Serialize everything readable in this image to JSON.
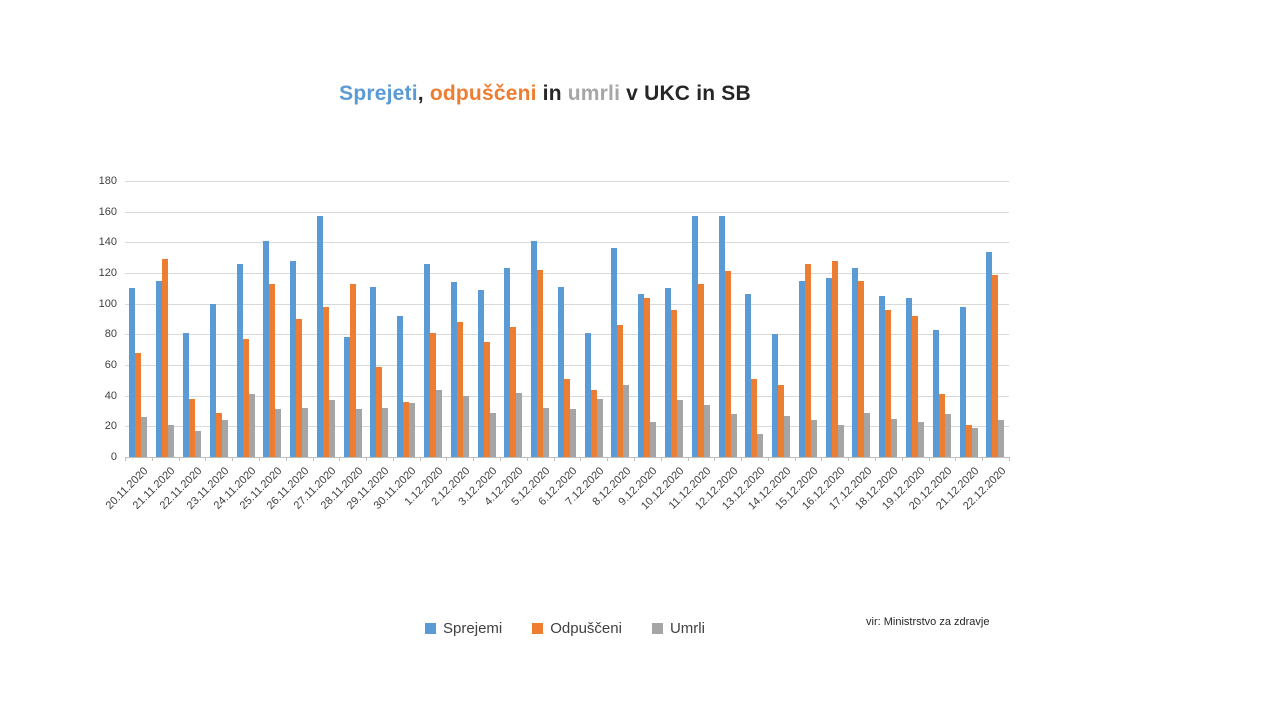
{
  "title": {
    "parts": [
      {
        "text": "Sprejeti",
        "color": "#5B9BD5"
      },
      {
        "text": ", ",
        "color": "#262626"
      },
      {
        "text": "odpuščeni",
        "color": "#ED7D31"
      },
      {
        "text": " in ",
        "color": "#262626"
      },
      {
        "text": "umrli",
        "color": "#A6A6A6"
      },
      {
        "text": " v UKC in SB",
        "color": "#262626"
      }
    ],
    "full_text": "Sprejeti, odpuščeni in umrli v UKC in SB"
  },
  "source_note": "vir: Ministrstvo za zdravje",
  "chart_data": {
    "type": "bar",
    "title": "Sprejeti, odpuščeni in umrli v UKC in SB",
    "xlabel": "",
    "ylabel": "",
    "ylim": [
      0,
      180
    ],
    "ytick_step": 20,
    "grid": true,
    "legend_position": "bottom",
    "categories": [
      "20.11.2020",
      "21.11.2020",
      "22.11.2020",
      "23.11.2020",
      "24.11.2020",
      "25.11.2020",
      "26.11.2020",
      "27.11.2020",
      "28.11.2020",
      "29.11.2020",
      "30.11.2020",
      "1.12.2020",
      "2.12.2020",
      "3.12.2020",
      "4.12.2020",
      "5.12.2020",
      "6.12.2020",
      "7.12.2020",
      "8.12.2020",
      "9.12.2020",
      "10.12.2020",
      "11.12.2020",
      "12.12.2020",
      "13.12.2020",
      "14.12.2020",
      "15.12.2020",
      "16.12.2020",
      "17.12.2020",
      "18.12.2020",
      "19.12.2020",
      "20.12.2020",
      "21.12.2020",
      "22.12.2020"
    ],
    "series": [
      {
        "name": "Sprejemi",
        "key": "sprejemi",
        "color": "#5B9BD5",
        "values": [
          110,
          115,
          81,
          100,
          126,
          141,
          128,
          157,
          78,
          111,
          92,
          126,
          114,
          109,
          123,
          141,
          111,
          81,
          136,
          106,
          110,
          157,
          157,
          106,
          80,
          115,
          117,
          123,
          105,
          104,
          83,
          98,
          134
        ]
      },
      {
        "name": "Odpuščeni",
        "key": "odpusceni",
        "color": "#ED7D31",
        "values": [
          68,
          129,
          38,
          29,
          77,
          113,
          90,
          98,
          113,
          59,
          36,
          81,
          88,
          75,
          85,
          122,
          51,
          44,
          86,
          104,
          96,
          113,
          121,
          51,
          47,
          126,
          128,
          115,
          96,
          92,
          41,
          21,
          119
        ]
      },
      {
        "name": "Umrli",
        "key": "umrli",
        "color": "#A5A5A5",
        "values": [
          26,
          21,
          17,
          24,
          41,
          31,
          32,
          37,
          31,
          32,
          35,
          44,
          40,
          29,
          42,
          32,
          31,
          38,
          47,
          23,
          37,
          34,
          28,
          15,
          27,
          24,
          21,
          29,
          25,
          23,
          28,
          19,
          24
        ]
      }
    ]
  }
}
